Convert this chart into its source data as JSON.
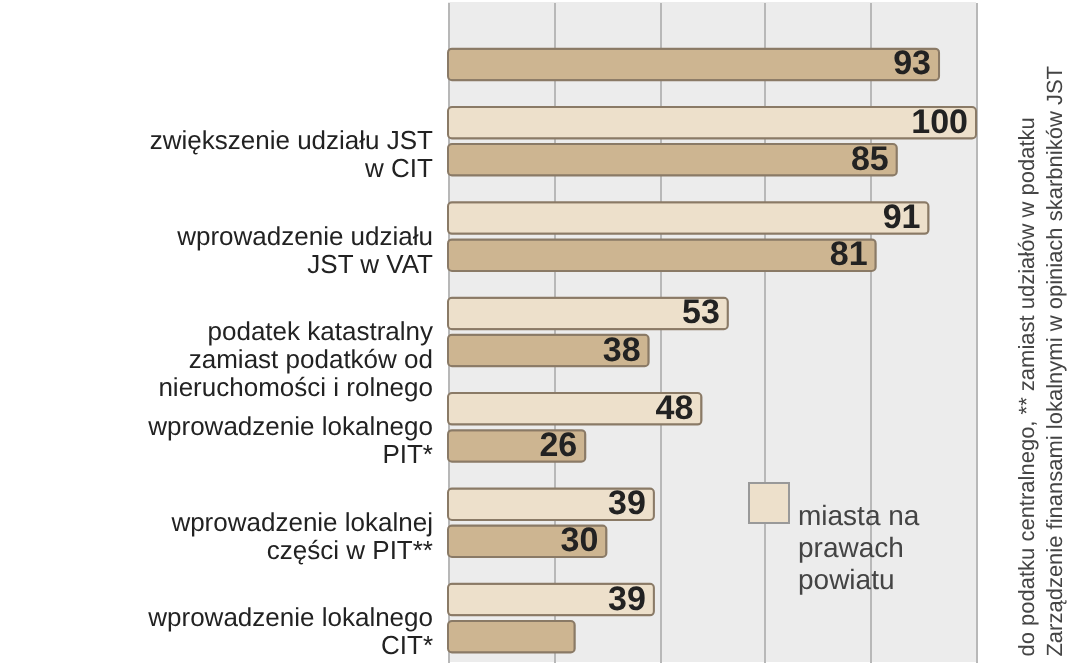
{
  "chart_data": {
    "type": "bar",
    "orientation": "horizontal",
    "categories": [
      null,
      "zwiększenie udziału JST w CIT",
      "wprowadzenie udziału JST w VAT",
      "podatek katastralny zamiast podatków od nieruchomości i rolnego",
      "wprowadzenie lokalnego PIT*",
      "wprowadzenie lokalnej części w PIT**",
      "wprowadzenie lokalnego CIT*"
    ],
    "series": [
      {
        "name": "miasta na prawach powiatu",
        "color": "#ede0cb",
        "values": [
          null,
          100,
          91,
          53,
          48,
          39,
          39
        ],
        "value_labels": [
          null,
          "100",
          "91",
          "53",
          "48",
          "39",
          "39"
        ]
      },
      {
        "color": "#cdb591",
        "values": [
          93,
          85,
          81,
          38,
          26,
          30,
          24
        ],
        "value_labels": [
          "93",
          "85",
          "81",
          "38",
          "26",
          "30",
          null
        ]
      }
    ],
    "xlim": [
      0,
      100
    ],
    "xticks": [
      {
        "value": 0,
        "label": null
      },
      {
        "value": 20,
        "label": null
      },
      {
        "value": 40,
        "label": null
      },
      {
        "value": 60,
        "label": null
      },
      {
        "value": 80,
        "label": null
      },
      {
        "value": 100,
        "label": null
      }
    ],
    "grid": "x",
    "tick_labels": "y",
    "legend": "bottom right",
    "annotations": [
      "do podatku centralnego, ** zamiast udziałów w podatku",
      "Zarządzenie finansami lokalnymi w opiniach skarbników JST"
    ]
  }
}
